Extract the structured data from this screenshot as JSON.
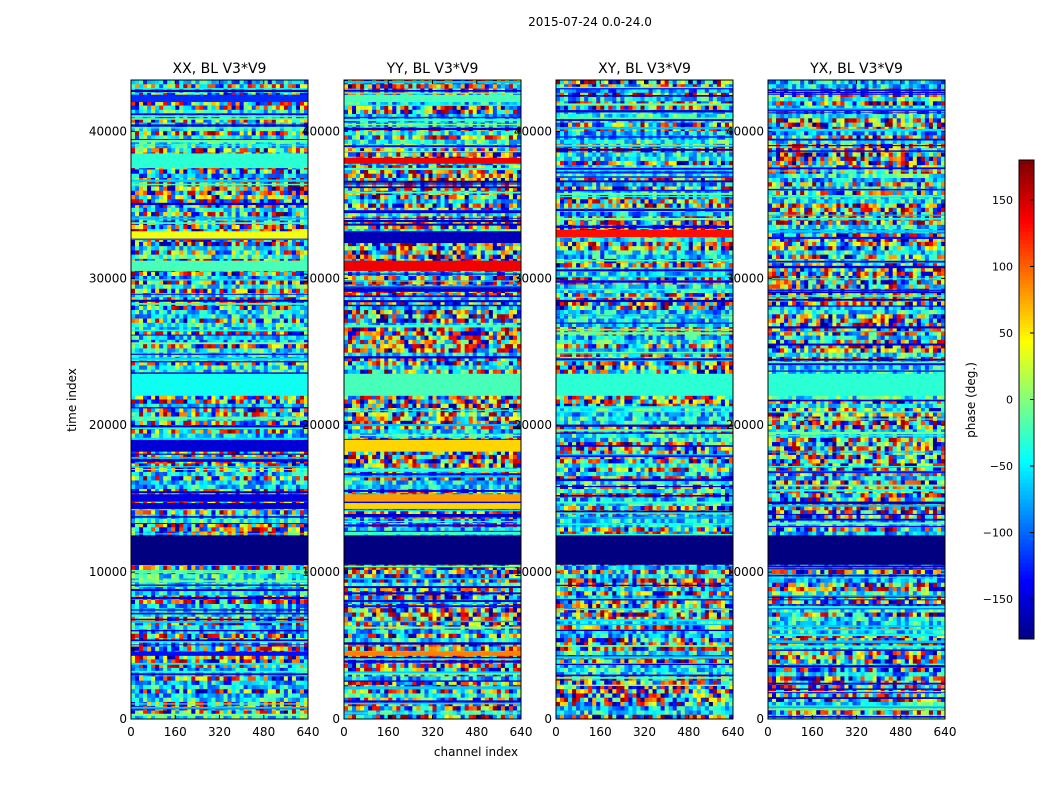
{
  "figure_title": "2015-07-24 0.0-24.0",
  "chart_data": {
    "type": "heatmap",
    "title": "2015-07-24 0.0-24.0",
    "xlabel": "channel index",
    "ylabel": "time index",
    "xlim": [
      0,
      640
    ],
    "ylim": [
      0,
      43500
    ],
    "xticks": [
      0,
      160,
      320,
      480,
      640
    ],
    "yticks": [
      0,
      10000,
      20000,
      30000,
      40000
    ],
    "colorbar": {
      "label": "phase (deg.)",
      "range": [
        -180,
        180
      ],
      "ticks": [
        -150,
        -100,
        -50,
        0,
        50,
        100,
        150
      ],
      "colormap": "jet"
    },
    "panels": [
      {
        "title": "XX, BL V3*V9",
        "bands": [
          {
            "y": [
              10500,
              12500
            ],
            "phase": -180
          },
          {
            "y": [
              4300,
              4600
            ],
            "phase": -130
          },
          {
            "y": [
              14300,
              14700
            ],
            "phase": -150
          },
          {
            "y": [
              14800,
              15300
            ],
            "phase": -145
          },
          {
            "y": [
              18200,
              19000
            ],
            "phase": -150
          },
          {
            "y": [
              22000,
              23500
            ],
            "phase": -40
          },
          {
            "y": [
              30500,
              31200
            ],
            "phase": -20
          },
          {
            "y": [
              32700,
              33200
            ],
            "phase": 40
          },
          {
            "y": [
              37500,
              38500
            ],
            "phase": -30
          },
          {
            "y": [
              42000,
              42500
            ],
            "phase": -120
          }
        ]
      },
      {
        "title": "YY, BL V3*V9",
        "bands": [
          {
            "y": [
              10500,
              12500
            ],
            "phase": -180
          },
          {
            "y": [
              4300,
              4600
            ],
            "phase": 90
          },
          {
            "y": [
              14300,
              14700
            ],
            "phase": 60
          },
          {
            "y": [
              14800,
              15300
            ],
            "phase": 80
          },
          {
            "y": [
              18200,
              19000
            ],
            "phase": 60
          },
          {
            "y": [
              22000,
              23500
            ],
            "phase": -20
          },
          {
            "y": [
              30500,
              31200
            ],
            "phase": 140
          },
          {
            "y": [
              32400,
              33200
            ],
            "phase": -160
          },
          {
            "y": [
              37800,
              38200
            ],
            "phase": 140
          },
          {
            "y": [
              42000,
              42500
            ],
            "phase": -20
          }
        ]
      },
      {
        "title": "XY, BL V3*V9",
        "bands": [
          {
            "y": [
              10500,
              12500
            ],
            "phase": -180
          },
          {
            "y": [
              32800,
              33300
            ],
            "phase": 130
          },
          {
            "y": [
              22000,
              23500
            ],
            "phase": -30
          }
        ]
      },
      {
        "title": "YX, BL V3*V9",
        "bands": [
          {
            "y": [
              10500,
              12500
            ],
            "phase": -180
          },
          {
            "y": [
              22000,
              23500
            ],
            "phase": -30
          }
        ]
      }
    ]
  }
}
